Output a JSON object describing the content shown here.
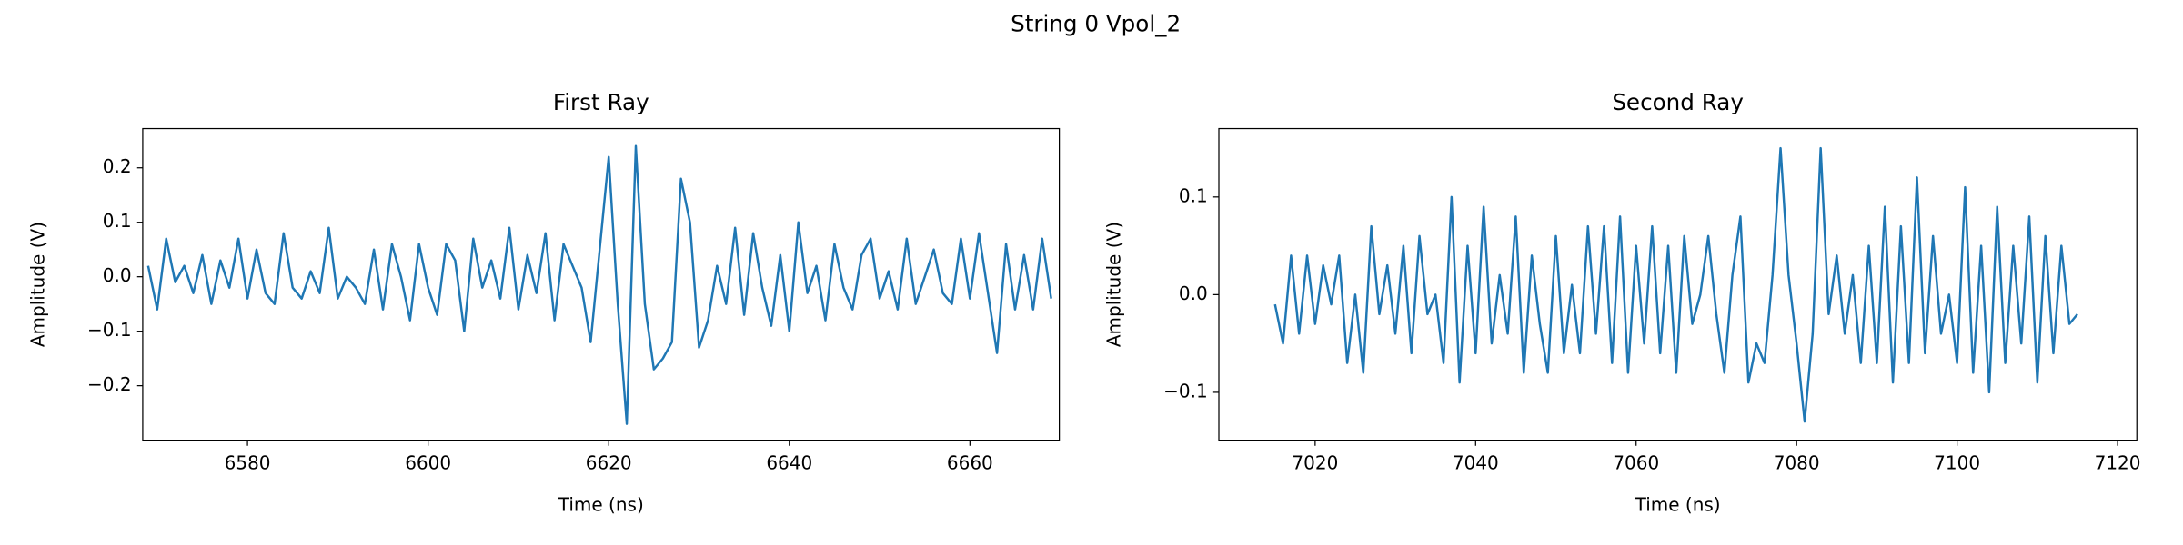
{
  "figure_title": "String 0 Vpol_2",
  "chart_data": [
    {
      "type": "line",
      "title": "First Ray",
      "xlabel": "Time (ns)",
      "ylabel": "Amplitude (V)",
      "xlim": [
        6568.4,
        6669.9
      ],
      "ylim": [
        -0.3,
        0.272
      ],
      "xticks": [
        6580,
        6600,
        6620,
        6640,
        6660
      ],
      "yticks": [
        {
          "value": -0.2,
          "label": "−0.2"
        },
        {
          "value": -0.1,
          "label": "−0.1"
        },
        {
          "value": 0,
          "label": "0.0"
        },
        0.1,
        0.2
      ],
      "x": [
        6569,
        6570,
        6571,
        6572,
        6573,
        6574,
        6575,
        6576,
        6577,
        6578,
        6579,
        6580,
        6581,
        6582,
        6583,
        6584,
        6585,
        6586,
        6587,
        6588,
        6589,
        6590,
        6591,
        6592,
        6593,
        6594,
        6595,
        6596,
        6597,
        6598,
        6599,
        6600,
        6601,
        6602,
        6603,
        6604,
        6605,
        6606,
        6607,
        6608,
        6609,
        6610,
        6611,
        6612,
        6613,
        6614,
        6615,
        6616,
        6617,
        6618,
        6619,
        6620,
        6621,
        6622,
        6623,
        6624,
        6625,
        6626,
        6627,
        6628,
        6629,
        6630,
        6631,
        6632,
        6633,
        6634,
        6635,
        6636,
        6637,
        6638,
        6639,
        6640,
        6641,
        6642,
        6643,
        6644,
        6645,
        6646,
        6647,
        6648,
        6649,
        6650,
        6651,
        6652,
        6653,
        6654,
        6655,
        6656,
        6657,
        6658,
        6659,
        6660,
        6661,
        6662,
        6663,
        6664,
        6665,
        6666,
        6667,
        6668,
        6669
      ],
      "series": [
        {
          "color": "#1f77b4",
          "values": [
            0.02,
            -0.06,
            0.07,
            -0.01,
            0.02,
            -0.03,
            0.04,
            -0.05,
            0.03,
            -0.02,
            0.07,
            -0.04,
            0.05,
            -0.03,
            -0.05,
            0.08,
            -0.02,
            -0.04,
            0.01,
            -0.03,
            0.09,
            -0.04,
            0.0,
            -0.02,
            -0.05,
            0.05,
            -0.06,
            0.06,
            0.0,
            -0.08,
            0.06,
            -0.02,
            -0.07,
            0.06,
            0.03,
            -0.1,
            0.07,
            -0.02,
            0.03,
            -0.04,
            0.09,
            -0.06,
            0.04,
            -0.03,
            0.08,
            -0.08,
            0.06,
            0.02,
            -0.02,
            -0.12,
            0.05,
            0.22,
            -0.05,
            -0.27,
            0.24,
            -0.05,
            -0.17,
            -0.15,
            -0.12,
            0.18,
            0.1,
            -0.13,
            -0.08,
            0.02,
            -0.05,
            0.09,
            -0.07,
            0.08,
            -0.02,
            -0.09,
            0.04,
            -0.1,
            0.1,
            -0.03,
            0.02,
            -0.08,
            0.06,
            -0.02,
            -0.06,
            0.04,
            0.07,
            -0.04,
            0.01,
            -0.06,
            0.07,
            -0.05,
            0.0,
            0.05,
            -0.03,
            -0.05,
            0.07,
            -0.04,
            0.08,
            -0.03,
            -0.14,
            0.06,
            -0.06,
            0.04,
            -0.06,
            0.07,
            -0.04
          ]
        }
      ]
    },
    {
      "type": "line",
      "title": "Second Ray",
      "xlabel": "Time (ns)",
      "ylabel": "Amplitude (V)",
      "xlim": [
        7008.0,
        7122.4
      ],
      "ylim": [
        -0.149,
        0.17
      ],
      "xticks": [
        7020,
        7040,
        7060,
        7080,
        7100,
        7120
      ],
      "yticks": [
        {
          "value": -0.1,
          "label": "−0.1"
        },
        {
          "value": 0,
          "label": "0.0"
        },
        0.1
      ],
      "x": [
        7015,
        7016,
        7017,
        7018,
        7019,
        7020,
        7021,
        7022,
        7023,
        7024,
        7025,
        7026,
        7027,
        7028,
        7029,
        7030,
        7031,
        7032,
        7033,
        7034,
        7035,
        7036,
        7037,
        7038,
        7039,
        7040,
        7041,
        7042,
        7043,
        7044,
        7045,
        7046,
        7047,
        7048,
        7049,
        7050,
        7051,
        7052,
        7053,
        7054,
        7055,
        7056,
        7057,
        7058,
        7059,
        7060,
        7061,
        7062,
        7063,
        7064,
        7065,
        7066,
        7067,
        7068,
        7069,
        7070,
        7071,
        7072,
        7073,
        7074,
        7075,
        7076,
        7077,
        7078,
        7079,
        7080,
        7081,
        7082,
        7083,
        7084,
        7085,
        7086,
        7087,
        7088,
        7089,
        7090,
        7091,
        7092,
        7093,
        7094,
        7095,
        7096,
        7097,
        7098,
        7099,
        7100,
        7101,
        7102,
        7103,
        7104,
        7105,
        7106,
        7107,
        7108,
        7109,
        7110,
        7111,
        7112,
        7113,
        7114,
        7115
      ],
      "series": [
        {
          "color": "#1f77b4",
          "values": [
            -0.01,
            -0.05,
            0.04,
            -0.04,
            0.04,
            -0.03,
            0.03,
            -0.01,
            0.04,
            -0.07,
            0.0,
            -0.08,
            0.07,
            -0.02,
            0.03,
            -0.04,
            0.05,
            -0.06,
            0.06,
            -0.02,
            0.0,
            -0.07,
            0.1,
            -0.09,
            0.05,
            -0.06,
            0.09,
            -0.05,
            0.02,
            -0.04,
            0.08,
            -0.08,
            0.04,
            -0.03,
            -0.08,
            0.06,
            -0.06,
            0.01,
            -0.06,
            0.07,
            -0.04,
            0.07,
            -0.07,
            0.08,
            -0.08,
            0.05,
            -0.05,
            0.07,
            -0.06,
            0.05,
            -0.08,
            0.06,
            -0.03,
            0.0,
            0.06,
            -0.02,
            -0.08,
            0.02,
            0.08,
            -0.09,
            -0.05,
            -0.07,
            0.02,
            0.15,
            0.02,
            -0.05,
            -0.13,
            -0.04,
            0.15,
            -0.02,
            0.04,
            -0.04,
            0.02,
            -0.07,
            0.05,
            -0.07,
            0.09,
            -0.09,
            0.07,
            -0.07,
            0.12,
            -0.06,
            0.06,
            -0.04,
            0.0,
            -0.07,
            0.11,
            -0.08,
            0.05,
            -0.1,
            0.09,
            -0.07,
            0.05,
            -0.05,
            0.08,
            -0.09,
            0.06,
            -0.06,
            0.05,
            -0.03,
            -0.02
          ]
        }
      ]
    }
  ]
}
